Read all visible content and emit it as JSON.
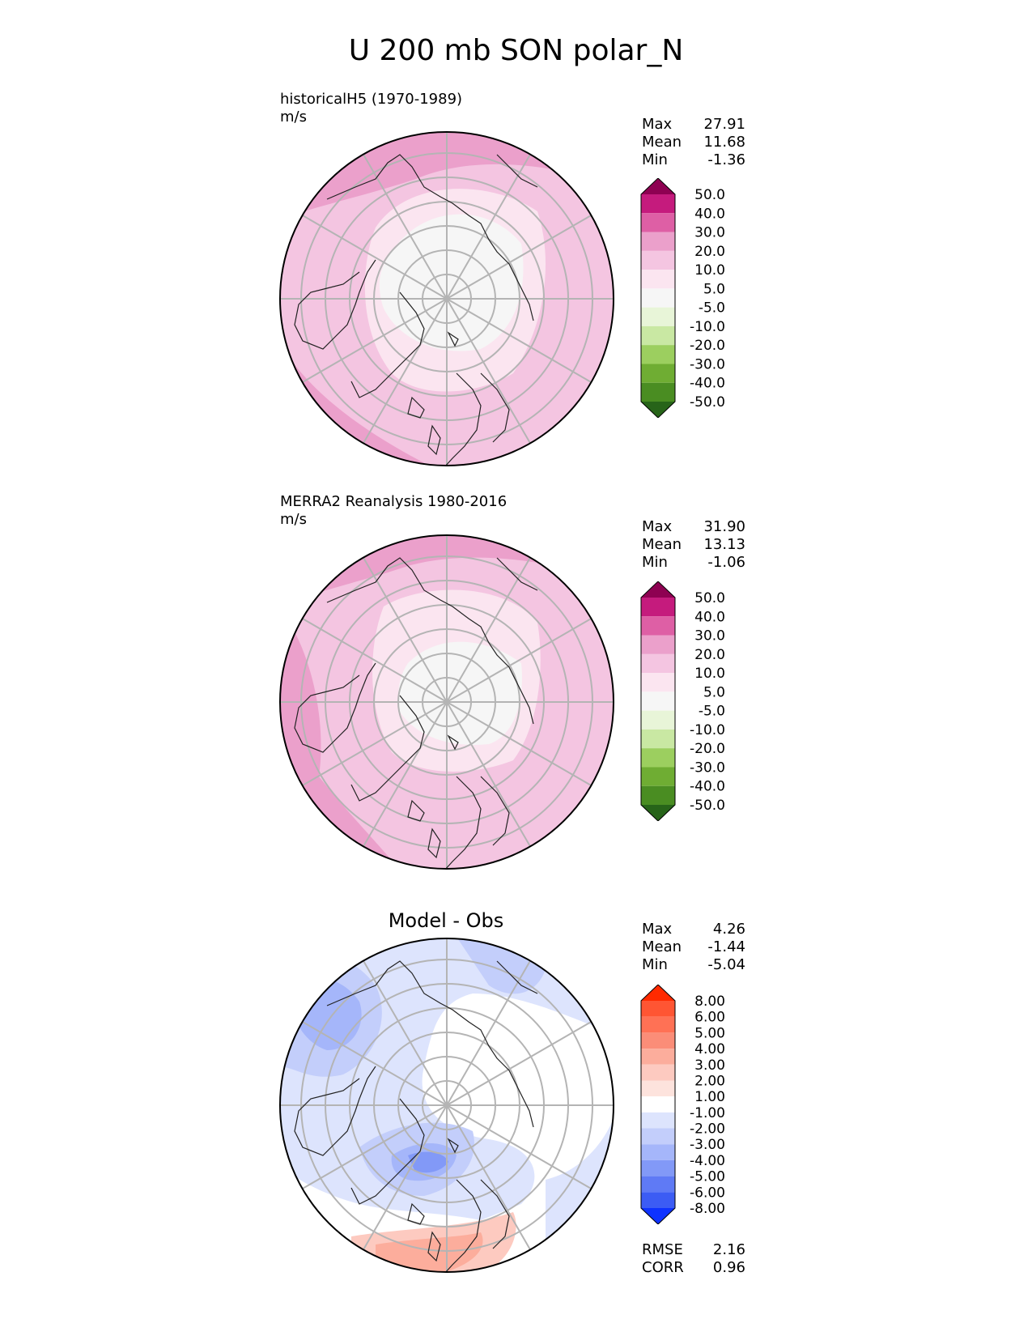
{
  "figure_title": "U 200 mb SON polar_N",
  "panels": [
    {
      "title": "historicalH5 (1970-1989)",
      "units": "m/s",
      "stats": [
        {
          "label": "Max",
          "value": "27.91"
        },
        {
          "label": "Mean",
          "value": "11.68"
        },
        {
          "label": "Min",
          "value": "-1.36"
        }
      ]
    },
    {
      "title": "MERRA2 Reanalysis 1980-2016",
      "units": "m/s",
      "stats": [
        {
          "label": "Max",
          "value": "31.90"
        },
        {
          "label": "Mean",
          "value": "13.13"
        },
        {
          "label": "Min",
          "value": "-1.06"
        }
      ]
    },
    {
      "title": "Model - Obs",
      "stats": [
        {
          "label": "Max",
          "value": "4.26"
        },
        {
          "label": "Mean",
          "value": "-1.44"
        },
        {
          "label": "Min",
          "value": "-5.04"
        }
      ],
      "metrics": [
        {
          "label": "RMSE",
          "value": "2.16"
        },
        {
          "label": "CORR",
          "value": "0.96"
        }
      ]
    }
  ],
  "colorbar_main": {
    "labels": [
      "50.0",
      "40.0",
      "30.0",
      "20.0",
      "10.0",
      "5.0",
      "-5.0",
      "-10.0",
      "-20.0",
      "-30.0",
      "-40.0",
      "-50.0"
    ],
    "colors": [
      "#8e0152",
      "#c51b7d",
      "#de5fa5",
      "#eba0cb",
      "#f4c5e1",
      "#fbe5f0",
      "#f6f6f6",
      "#e8f5d8",
      "#c9e8a3",
      "#9ccf5f",
      "#6fad33",
      "#4a8d22",
      "#276419"
    ]
  },
  "colorbar_diff": {
    "labels": [
      "8.00",
      "6.00",
      "5.00",
      "4.00",
      "3.00",
      "2.00",
      "1.00",
      "-1.00",
      "-2.00",
      "-3.00",
      "-4.00",
      "-5.00",
      "-6.00",
      "-8.00"
    ],
    "colors": [
      "#ff2a00",
      "#ff5533",
      "#ff7155",
      "#fb8d78",
      "#fcad9c",
      "#fdcac0",
      "#fde3dd",
      "#ffffff",
      "#dde4fd",
      "#c3cefb",
      "#a5b6fa",
      "#8299f7",
      "#5f7af5",
      "#3c5cf4",
      "#0e32ff"
    ]
  }
}
